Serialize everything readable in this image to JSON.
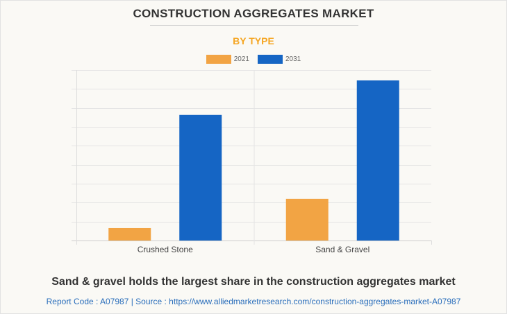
{
  "chart_data": {
    "type": "bar",
    "title": "CONSTRUCTION AGGREGATES MARKET",
    "subtitle": "BY TYPE",
    "categories": [
      "Crushed Stone",
      "Sand & Gravel"
    ],
    "series": [
      {
        "name": "2021",
        "color": "#f2a444",
        "values": [
          0.66,
          2.2
        ]
      },
      {
        "name": "2031",
        "color": "#1565c4",
        "values": [
          6.63,
          8.45
        ]
      }
    ],
    "xlabel": "",
    "ylabel": "",
    "ylim": [
      0,
      9
    ],
    "grid": true,
    "legend_position": "top-center"
  },
  "headline": "Sand & gravel holds the largest share in the construction aggregates market",
  "source": "Report Code : A07987  |  Source : https://www.alliedmarketresearch.com/construction-aggregates-market-A07987"
}
